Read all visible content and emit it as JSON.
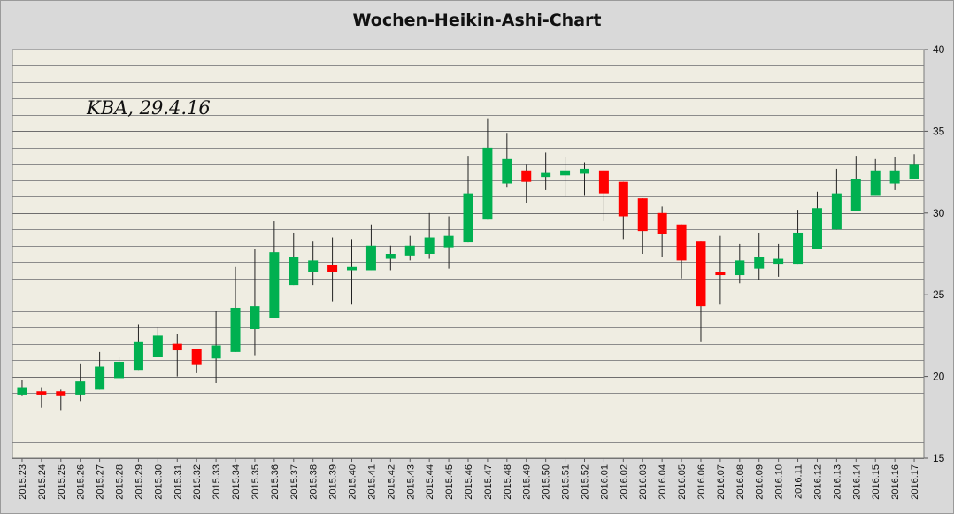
{
  "chart_data": {
    "type": "candlestick",
    "title": "Wochen-Heikin-Ashi-Chart",
    "annotation": "KBA, 29.4.16",
    "ylim": [
      15,
      40
    ],
    "yticks": [
      15,
      20,
      25,
      30,
      35,
      40
    ],
    "minor_grid_step": 1,
    "y_axis_side": "right",
    "colors": {
      "up": "#00b050",
      "down": "#ff0000",
      "plot_bg": "#efede2",
      "grid": "#8c8c8c"
    },
    "candles": [
      {
        "label": "2015.23",
        "open": 18.9,
        "close": 19.3,
        "high": 19.8,
        "low": 18.8
      },
      {
        "label": "2015.24",
        "open": 19.1,
        "close": 18.9,
        "high": 19.3,
        "low": 18.1
      },
      {
        "label": "2015.25",
        "open": 19.1,
        "close": 18.8,
        "high": 19.2,
        "low": 17.9
      },
      {
        "label": "2015.26",
        "open": 18.9,
        "close": 19.7,
        "high": 20.8,
        "low": 18.5
      },
      {
        "label": "2015.27",
        "open": 19.2,
        "close": 20.6,
        "high": 21.5,
        "low": 19.2
      },
      {
        "label": "2015.28",
        "open": 19.9,
        "close": 20.9,
        "high": 21.2,
        "low": 19.9
      },
      {
        "label": "2015.29",
        "open": 20.4,
        "close": 22.1,
        "high": 23.2,
        "low": 20.4
      },
      {
        "label": "2015.30",
        "open": 21.2,
        "close": 22.5,
        "high": 23.0,
        "low": 21.2
      },
      {
        "label": "2015.31",
        "open": 22.0,
        "close": 21.6,
        "high": 22.6,
        "low": 20.0
      },
      {
        "label": "2015.32",
        "open": 21.7,
        "close": 20.7,
        "high": 21.7,
        "low": 20.2
      },
      {
        "label": "2015.33",
        "open": 21.1,
        "close": 21.9,
        "high": 24.0,
        "low": 19.6
      },
      {
        "label": "2015.34",
        "open": 21.5,
        "close": 24.2,
        "high": 26.7,
        "low": 21.5
      },
      {
        "label": "2015.35",
        "open": 22.9,
        "close": 24.3,
        "high": 27.8,
        "low": 21.3
      },
      {
        "label": "2015.36",
        "open": 23.6,
        "close": 27.6,
        "high": 29.5,
        "low": 23.6
      },
      {
        "label": "2015.37",
        "open": 25.6,
        "close": 27.3,
        "high": 28.8,
        "low": 25.6
      },
      {
        "label": "2015.38",
        "open": 26.4,
        "close": 27.1,
        "high": 28.3,
        "low": 25.6
      },
      {
        "label": "2015.39",
        "open": 26.8,
        "close": 26.4,
        "high": 28.5,
        "low": 24.6
      },
      {
        "label": "2015.40",
        "open": 26.5,
        "close": 26.7,
        "high": 28.4,
        "low": 24.4
      },
      {
        "label": "2015.41",
        "open": 26.5,
        "close": 28.0,
        "high": 29.3,
        "low": 26.5
      },
      {
        "label": "2015.42",
        "open": 27.2,
        "close": 27.5,
        "high": 28.0,
        "low": 26.5
      },
      {
        "label": "2015.43",
        "open": 27.4,
        "close": 28.0,
        "high": 28.6,
        "low": 27.1
      },
      {
        "label": "2015.44",
        "open": 27.5,
        "close": 28.5,
        "high": 30.0,
        "low": 27.2
      },
      {
        "label": "2015.45",
        "open": 27.9,
        "close": 28.6,
        "high": 29.8,
        "low": 26.6
      },
      {
        "label": "2015.46",
        "open": 28.2,
        "close": 31.2,
        "high": 33.5,
        "low": 28.2
      },
      {
        "label": "2015.47",
        "open": 29.6,
        "close": 34.0,
        "high": 35.8,
        "low": 29.6
      },
      {
        "label": "2015.48",
        "open": 31.8,
        "close": 33.3,
        "high": 34.9,
        "low": 31.6
      },
      {
        "label": "2015.49",
        "open": 32.6,
        "close": 31.9,
        "high": 33.0,
        "low": 30.6
      },
      {
        "label": "2015.50",
        "open": 32.2,
        "close": 32.5,
        "high": 33.7,
        "low": 31.4
      },
      {
        "label": "2015.51",
        "open": 32.3,
        "close": 32.6,
        "high": 33.4,
        "low": 31.0
      },
      {
        "label": "2015.52",
        "open": 32.4,
        "close": 32.7,
        "high": 33.1,
        "low": 31.1
      },
      {
        "label": "2016.01",
        "open": 32.6,
        "close": 31.2,
        "high": 32.6,
        "low": 29.5
      },
      {
        "label": "2016.02",
        "open": 31.9,
        "close": 29.8,
        "high": 31.9,
        "low": 28.4
      },
      {
        "label": "2016.03",
        "open": 30.9,
        "close": 28.9,
        "high": 30.9,
        "low": 27.5
      },
      {
        "label": "2016.04",
        "open": 30.0,
        "close": 28.7,
        "high": 30.4,
        "low": 27.3
      },
      {
        "label": "2016.05",
        "open": 29.3,
        "close": 27.1,
        "high": 29.3,
        "low": 26.0
      },
      {
        "label": "2016.06",
        "open": 28.3,
        "close": 24.3,
        "high": 28.3,
        "low": 22.1
      },
      {
        "label": "2016.07",
        "open": 26.4,
        "close": 26.2,
        "high": 28.6,
        "low": 24.4
      },
      {
        "label": "2016.08",
        "open": 26.2,
        "close": 27.1,
        "high": 28.1,
        "low": 25.7
      },
      {
        "label": "2016.09",
        "open": 26.6,
        "close": 27.3,
        "high": 28.8,
        "low": 25.9
      },
      {
        "label": "2016.10",
        "open": 26.9,
        "close": 27.2,
        "high": 28.1,
        "low": 26.1
      },
      {
        "label": "2016.11",
        "open": 26.9,
        "close": 28.8,
        "high": 30.2,
        "low": 26.9
      },
      {
        "label": "2016.12",
        "open": 27.8,
        "close": 30.3,
        "high": 31.3,
        "low": 27.8
      },
      {
        "label": "2016.13",
        "open": 29.0,
        "close": 31.2,
        "high": 32.7,
        "low": 29.0
      },
      {
        "label": "2016.14",
        "open": 30.1,
        "close": 32.1,
        "high": 33.5,
        "low": 30.1
      },
      {
        "label": "2016.15",
        "open": 31.1,
        "close": 32.6,
        "high": 33.3,
        "low": 31.1
      },
      {
        "label": "2016.16",
        "open": 31.8,
        "close": 32.6,
        "high": 33.4,
        "low": 31.4
      },
      {
        "label": "2016.17",
        "open": 32.1,
        "close": 33.0,
        "high": 33.6,
        "low": 32.1
      }
    ]
  }
}
